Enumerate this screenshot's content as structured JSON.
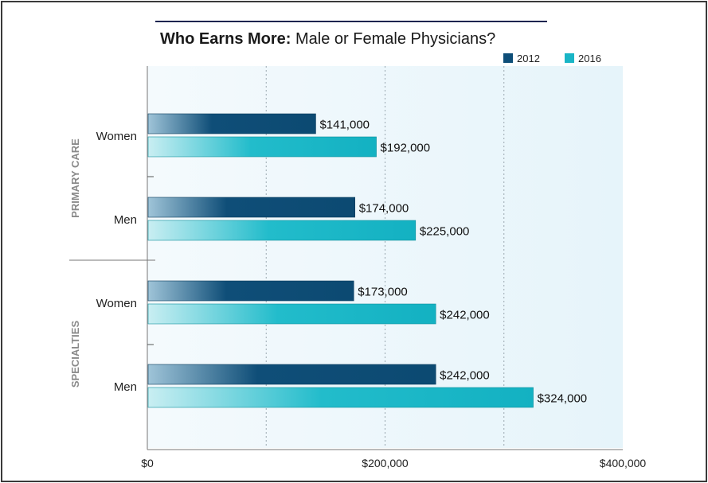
{
  "chart_data": {
    "type": "bar",
    "orientation": "horizontal",
    "title_bold": "Who Earns More:",
    "title_rest": " Male or Female Physicians?",
    "groups": [
      {
        "name": "PRIMARY CARE",
        "categories": [
          "Women",
          "Men"
        ]
      },
      {
        "name": "SPECIALTIES",
        "categories": [
          "Women",
          "Men"
        ]
      }
    ],
    "series": [
      {
        "name": "2012",
        "color": "#0e4e78",
        "values": [
          141000,
          174000,
          173000,
          242000
        ]
      },
      {
        "name": "2016",
        "color": "#19b5c6",
        "values": [
          192000,
          225000,
          242000,
          324000
        ]
      }
    ],
    "data_labels": [
      [
        "$141,000",
        "$192,000"
      ],
      [
        "$174,000",
        "$225,000"
      ],
      [
        "$173,000",
        "$242,000"
      ],
      [
        "$242,000",
        "$324,000"
      ]
    ],
    "xlim": [
      0,
      400000
    ],
    "x_ticks": [
      0,
      200000,
      400000
    ],
    "x_tick_labels": [
      "$0",
      "$200,000",
      "$400,000"
    ],
    "grid": "vertical-dotted",
    "legend_position": "top-right"
  },
  "colors": {
    "title_rule": "#1d2450",
    "plot_background": "#eef7fb",
    "axis_text": "#222222",
    "group_text": "#8a8a8a"
  }
}
